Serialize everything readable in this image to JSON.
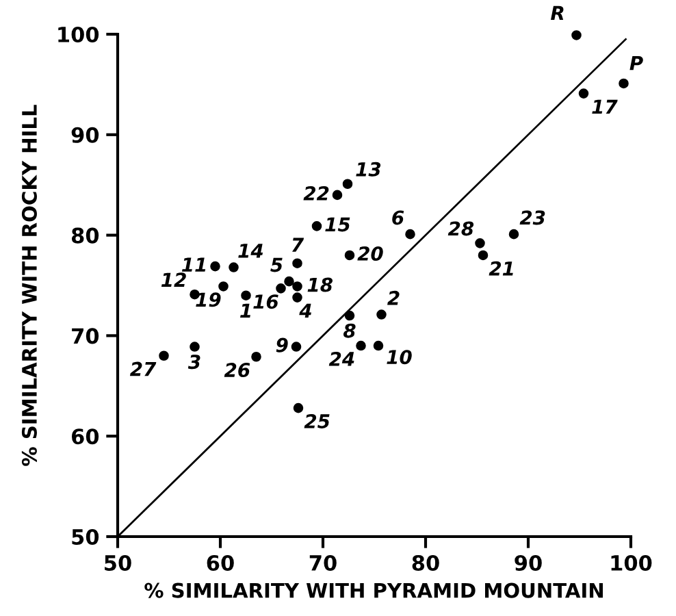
{
  "chart_data": {
    "type": "scatter",
    "xlabel": "% SIMILARITY WITH PYRAMID MOUNTAIN",
    "ylabel": "% SIMILARITY WITH ROCKY HILL",
    "xlim": [
      50,
      100
    ],
    "ylim": [
      50,
      100
    ],
    "xticks": [
      50,
      60,
      70,
      80,
      90,
      100
    ],
    "yticks": [
      50,
      60,
      70,
      80,
      90,
      100
    ],
    "grid": false,
    "series": [
      {
        "marker": "circle",
        "color": "#000000",
        "x": [
          94.7,
          99.3,
          95.4,
          72.4,
          71.4,
          69.4,
          72.6,
          67.5,
          61.3,
          59.5,
          60.3,
          57.5,
          62.5,
          66.7,
          67.5,
          65.9,
          67.5,
          72.6,
          75.7,
          67.4,
          73.7,
          75.4,
          63.5,
          57.5,
          54.5,
          67.6,
          78.5,
          85.3,
          85.6,
          88.6
        ],
        "values": [
          99.9,
          95.1,
          94.1,
          85.1,
          84.0,
          80.9,
          78.0,
          77.2,
          76.8,
          76.9,
          74.9,
          74.1,
          74.0,
          75.4,
          74.9,
          74.7,
          73.8,
          72.0,
          72.1,
          68.9,
          69.0,
          69.0,
          67.9,
          68.9,
          68.0,
          62.8,
          80.1,
          79.2,
          78.0,
          80.1
        ]
      },
      {
        "type": "line",
        "color": "#000000",
        "x": [
          50,
          99.5
        ],
        "values": [
          50,
          99.5
        ]
      }
    ],
    "annotations": [
      {
        "text": "R",
        "x": 94.7,
        "y": 99.9
      },
      {
        "text": "P",
        "x": 99.3,
        "y": 95.1
      },
      {
        "text": "17",
        "x": 95.4,
        "y": 94.1
      },
      {
        "text": "13",
        "x": 72.4,
        "y": 85.1
      },
      {
        "text": "22",
        "x": 71.4,
        "y": 84.0
      },
      {
        "text": "15",
        "x": 69.4,
        "y": 80.9
      },
      {
        "text": "20",
        "x": 72.6,
        "y": 78.0
      },
      {
        "text": "7",
        "x": 67.5,
        "y": 77.2
      },
      {
        "text": "14",
        "x": 61.3,
        "y": 76.8
      },
      {
        "text": "11",
        "x": 59.5,
        "y": 76.9
      },
      {
        "text": "19",
        "x": 60.3,
        "y": 74.9
      },
      {
        "text": "12",
        "x": 57.5,
        "y": 74.1
      },
      {
        "text": "1",
        "x": 62.5,
        "y": 74.0
      },
      {
        "text": "5",
        "x": 66.7,
        "y": 75.4
      },
      {
        "text": "18",
        "x": 67.5,
        "y": 74.9
      },
      {
        "text": "16",
        "x": 65.9,
        "y": 74.7
      },
      {
        "text": "4",
        "x": 67.5,
        "y": 73.8
      },
      {
        "text": "8",
        "x": 72.6,
        "y": 72.0
      },
      {
        "text": "2",
        "x": 75.7,
        "y": 72.1
      },
      {
        "text": "9",
        "x": 67.4,
        "y": 68.9
      },
      {
        "text": "24",
        "x": 73.7,
        "y": 69.0
      },
      {
        "text": "10",
        "x": 75.4,
        "y": 69.0
      },
      {
        "text": "26",
        "x": 63.5,
        "y": 67.9
      },
      {
        "text": "3",
        "x": 57.5,
        "y": 68.9
      },
      {
        "text": "27",
        "x": 54.5,
        "y": 68.0
      },
      {
        "text": "25",
        "x": 67.6,
        "y": 62.8
      },
      {
        "text": "6",
        "x": 78.5,
        "y": 80.1
      },
      {
        "text": "28",
        "x": 85.3,
        "y": 79.2
      },
      {
        "text": "21",
        "x": 85.6,
        "y": 78.0
      },
      {
        "text": "23",
        "x": 88.6,
        "y": 80.1
      }
    ]
  }
}
